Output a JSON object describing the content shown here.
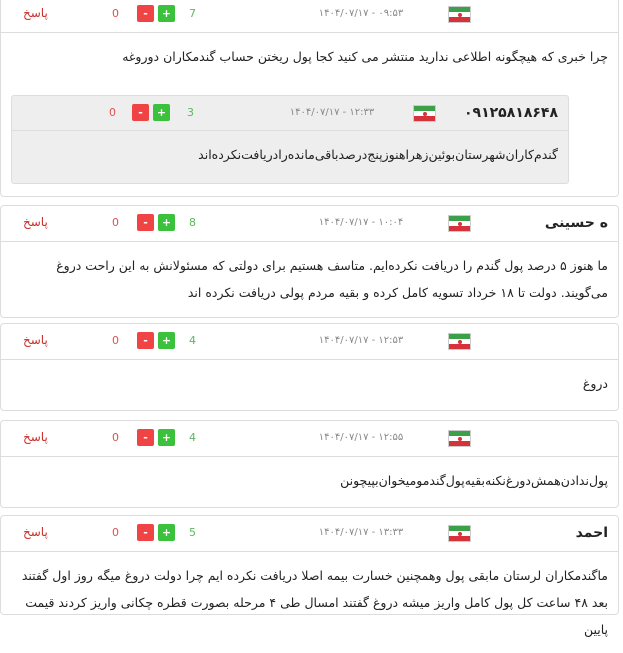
{
  "comments": [
    {
      "name": "",
      "date": "۱۴۰۴/۰۷/۱۷ - ۰۹:۵۳",
      "likes": "7",
      "dislikes": "0",
      "reply": "پاسخ",
      "text": "چرا خبری که هیچگونه اطلاعی ندارید منتشر می کنید کجا پول ریختن حساب گندمکاران دوروغه",
      "replies": [
        {
          "name": "۰۹۱۲۵۸۱۸۶۴۸",
          "date": "۱۴۰۴/۰۷/۱۷ - ۱۲:۳۳",
          "likes": "3",
          "dislikes": "0",
          "text": "گندم‌کاران‌شهرستان‌بوئین‌زهراهنوزپنج‌درصدباقی‌مانده‌رادریافت‌نکرده‌اند"
        }
      ]
    },
    {
      "name": "ه حسینی",
      "date": "۱۴۰۴/۰۷/۱۷ - ۱۰:۰۴",
      "likes": "8",
      "dislikes": "0",
      "reply": "پاسخ",
      "text": "ما هنوز ۵ درصد پول گندم را دریافت نکرده‌ایم. متاسف هستیم برای دولتی که مسئولانش به این راحت دروغ می‌گویند. دولت تا ۱۸ خرداد تسویه کامل کرده و بقیه مردم پولی دریافت نکرده اند"
    },
    {
      "name": "",
      "date": "۱۴۰۴/۰۷/۱۷ - ۱۲:۵۳",
      "likes": "4",
      "dislikes": "0",
      "reply": "پاسخ",
      "text": "دروغ"
    },
    {
      "name": "",
      "date": "۱۴۰۴/۰۷/۱۷ - ۱۲:۵۵",
      "likes": "4",
      "dislikes": "0",
      "reply": "پاسخ",
      "text": "پول‌ندادن‌همش‌دورغ‌نکنه‌بقیه‌پول‌گندمومیخوان‌بپیچونن"
    },
    {
      "name": "احمد",
      "date": "۱۴۰۴/۰۷/۱۷ - ۱۳:۳۳",
      "likes": "5",
      "dislikes": "0",
      "reply": "پاسخ",
      "text": "ماگندمکاران لرستان مابقی پول وهمچنین خسارت بیمه اصلا دریافت نکرده ایم چرا دولت دروغ میگه روز اول گفتند بعد ۴۸ ساعت کل پول کامل واریز میشه دروغ گفتند امسال طی ۴ مرحله بصورت قطره چکانی واریز کردند قیمت پایین"
    }
  ],
  "vote_plus": "+",
  "vote_minus": "-"
}
